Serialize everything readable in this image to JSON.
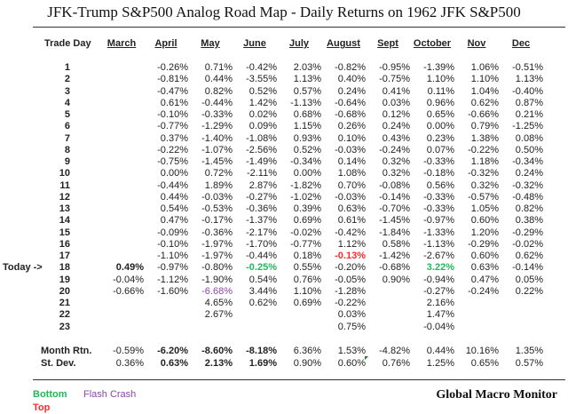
{
  "title": "JFK-Trump S&P500 Analog Road Map - Daily Returns on 1962 JFK S&P500",
  "trade_day_label": "Trade Day",
  "today_label": "Today ->",
  "today_day": 18,
  "days": [
    "1",
    "2",
    "3",
    "4",
    "5",
    "6",
    "7",
    "8",
    "9",
    "10",
    "11",
    "12",
    "13",
    "14",
    "15",
    "16",
    "17",
    "18",
    "19",
    "20",
    "21",
    "22",
    "23"
  ],
  "months": [
    {
      "name": "March",
      "values": [
        "",
        "",
        "",
        "",
        "",
        "",
        "",
        "",
        "",
        "",
        "",
        "",
        "",
        "",
        "",
        "",
        "",
        "0.49%",
        "-0.04%",
        "-0.66%",
        "",
        "",
        ""
      ],
      "month_rtn": "-0.59%",
      "st_dev": "0.36%"
    },
    {
      "name": "April",
      "values": [
        "-0.26%",
        "-0.81%",
        "-0.47%",
        "0.61%",
        "-0.10%",
        "-0.77%",
        "0.37%",
        "-0.22%",
        "-0.75%",
        "0.00%",
        "-0.44%",
        "0.44%",
        "0.54%",
        "0.47%",
        "-0.09%",
        "-0.10%",
        "-1.10%",
        "-0.97%",
        "-1.12%",
        "-1.60%",
        "",
        "",
        ""
      ],
      "month_rtn": "-6.20%",
      "st_dev": "0.63%"
    },
    {
      "name": "May",
      "values": [
        "0.71%",
        "0.44%",
        "0.82%",
        "-0.44%",
        "-0.33%",
        "-1.29%",
        "-1.40%",
        "-1.07%",
        "-1.45%",
        "0.72%",
        "1.89%",
        "-0.03%",
        "-0.53%",
        "-0.17%",
        "-0.36%",
        "-1.97%",
        "-1.97%",
        "-0.80%",
        "-1.90%",
        "-6.68%",
        "4.65%",
        "2.67%",
        ""
      ],
      "month_rtn": "-8.60%",
      "st_dev": "2.13%"
    },
    {
      "name": "June",
      "values": [
        "-0.42%",
        "-3.55%",
        "0.52%",
        "1.42%",
        "0.02%",
        "0.09%",
        "-1.08%",
        "-2.56%",
        "-1.49%",
        "-2.11%",
        "2.87%",
        "-0.27%",
        "-0.36%",
        "-1.37%",
        "-2.17%",
        "-1.70%",
        "-0.44%",
        "-0.25%",
        "0.54%",
        "3.44%",
        "0.62%",
        "",
        ""
      ],
      "month_rtn": "-8.18%",
      "st_dev": "1.69%"
    },
    {
      "name": "July",
      "values": [
        "2.03%",
        "1.13%",
        "0.57%",
        "-1.13%",
        "0.68%",
        "1.15%",
        "0.93%",
        "0.52%",
        "-0.34%",
        "0.00%",
        "-1.82%",
        "-1.02%",
        "0.39%",
        "0.69%",
        "-0.02%",
        "-0.77%",
        "0.18%",
        "0.55%",
        "0.76%",
        "1.10%",
        "0.69%",
        "",
        ""
      ],
      "month_rtn": "6.36%",
      "st_dev": "0.90%"
    },
    {
      "name": "August",
      "values": [
        "-0.82%",
        "0.40%",
        "0.24%",
        "-0.64%",
        "-0.68%",
        "0.26%",
        "0.10%",
        "-0.03%",
        "0.14%",
        "1.08%",
        "0.70%",
        "-0.03%",
        "0.63%",
        "0.61%",
        "-0.42%",
        "1.12%",
        "-0.13%",
        "-0.20%",
        "-0.05%",
        "-1.28%",
        "-0.22%",
        "0.03%",
        "0.75%"
      ],
      "month_rtn": "1.53%",
      "st_dev": "0.60%"
    },
    {
      "name": "Sept",
      "values": [
        "-0.95%",
        "-0.75%",
        "0.41%",
        "0.03%",
        "0.12%",
        "0.24%",
        "0.43%",
        "-0.24%",
        "0.32%",
        "0.32%",
        "-0.08%",
        "-0.14%",
        "-0.70%",
        "-1.45%",
        "-1.84%",
        "0.58%",
        "-1.42%",
        "-0.68%",
        "0.90%",
        "",
        "",
        "",
        ""
      ],
      "month_rtn": "-4.82%",
      "st_dev": "0.76%"
    },
    {
      "name": "October",
      "values": [
        "-1.39%",
        "1.10%",
        "0.11%",
        "0.96%",
        "0.65%",
        "0.00%",
        "0.23%",
        "0.07%",
        "-0.33%",
        "-0.18%",
        "0.56%",
        "-0.33%",
        "-0.33%",
        "-0.97%",
        "-1.33%",
        "-1.13%",
        "-2.67%",
        "3.22%",
        "-0.94%",
        "-0.27%",
        "2.16%",
        "1.47%",
        "-0.04%"
      ],
      "month_rtn": "0.44%",
      "st_dev": "1.25%"
    },
    {
      "name": "Nov",
      "values": [
        "1.06%",
        "1.10%",
        "1.04%",
        "0.62%",
        "-0.66%",
        "0.79%",
        "1.38%",
        "-0.22%",
        "1.18%",
        "-0.32%",
        "0.32%",
        "-0.57%",
        "1.05%",
        "0.60%",
        "1.20%",
        "-0.29%",
        "0.60%",
        "0.63%",
        "0.47%",
        "-0.24%",
        "",
        "",
        ""
      ],
      "month_rtn": "10.16%",
      "st_dev": "0.65%"
    },
    {
      "name": "Dec",
      "values": [
        "-0.51%",
        "1.13%",
        "-0.40%",
        "0.87%",
        "0.21%",
        "-1.25%",
        "0.08%",
        "0.50%",
        "-0.34%",
        "0.24%",
        "-0.32%",
        "-0.48%",
        "0.82%",
        "0.38%",
        "-0.29%",
        "-0.02%",
        "0.62%",
        "-0.14%",
        "0.05%",
        "0.22%",
        "",
        "",
        ""
      ],
      "month_rtn": "1.35%",
      "st_dev": "0.57%"
    }
  ],
  "bold_summary_months": [
    "April",
    "May",
    "June"
  ],
  "highlights": [
    {
      "month": "March",
      "day": 18,
      "type": "bold"
    },
    {
      "month": "June",
      "day": 18,
      "type": "bottom"
    },
    {
      "month": "October",
      "day": 18,
      "type": "bottom"
    },
    {
      "month": "August",
      "day": 17,
      "type": "top"
    },
    {
      "month": "May",
      "day": 20,
      "type": "flash"
    }
  ],
  "summary": {
    "month_rtn_label": "Month Rtn.",
    "st_dev_label": "St. Dev."
  },
  "legend": {
    "bottom": "Bottom",
    "top": "Top",
    "flash": "Flash Crash"
  },
  "colors": {
    "bottom": "#22b85a",
    "top": "#ff2a2a",
    "flash": "#8e44ad"
  },
  "brand": "Global Macro Monitor"
}
